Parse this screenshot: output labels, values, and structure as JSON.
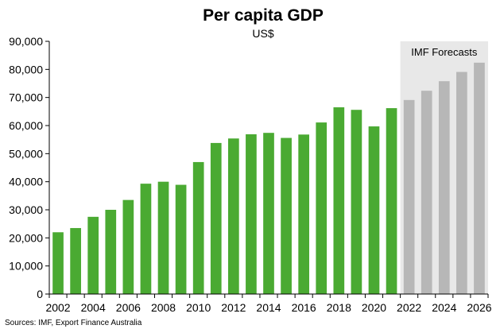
{
  "chart_data": {
    "type": "bar",
    "title": "Per capita GDP",
    "subtitle": "US$",
    "categories": [
      "2002",
      "2003",
      "2004",
      "2005",
      "2006",
      "2007",
      "2008",
      "2009",
      "2010",
      "2011",
      "2012",
      "2013",
      "2014",
      "2015",
      "2016",
      "2017",
      "2018",
      "2019",
      "2020",
      "2021",
      "2022",
      "2023",
      "2024",
      "2025",
      "2026"
    ],
    "x_tick_labels": [
      "2002",
      "2004",
      "2006",
      "2008",
      "2010",
      "2012",
      "2014",
      "2016",
      "2018",
      "2020",
      "2022",
      "2024",
      "2026"
    ],
    "series": [
      {
        "values": [
          22000,
          23500,
          27500,
          30000,
          33500,
          39300,
          40000,
          38900,
          47000,
          53800,
          55400,
          56900,
          57400,
          55600,
          56800,
          61100,
          66500,
          65600,
          59700,
          66200,
          69100,
          72400,
          75800,
          79100,
          82400
        ]
      }
    ],
    "actual_count": 20,
    "forecast_label": "IMF Forecasts",
    "ylim": [
      0,
      90000
    ],
    "y_tick_labels": [
      "0",
      "10,000",
      "20,000",
      "30,000",
      "40,000",
      "50,000",
      "60,000",
      "70,000",
      "80,000",
      "90,000"
    ],
    "y_tick_values": [
      0,
      10000,
      20000,
      30000,
      40000,
      50000,
      60000,
      70000,
      80000,
      90000
    ],
    "grid": false,
    "legend": "none",
    "colors": {
      "actual": "#4aaa32",
      "forecast": "#b7b7b7",
      "forecast_band": "#e8e8e8",
      "axis": "#000000"
    }
  },
  "source_note": "Sources: IMF, Export Finance Australia"
}
